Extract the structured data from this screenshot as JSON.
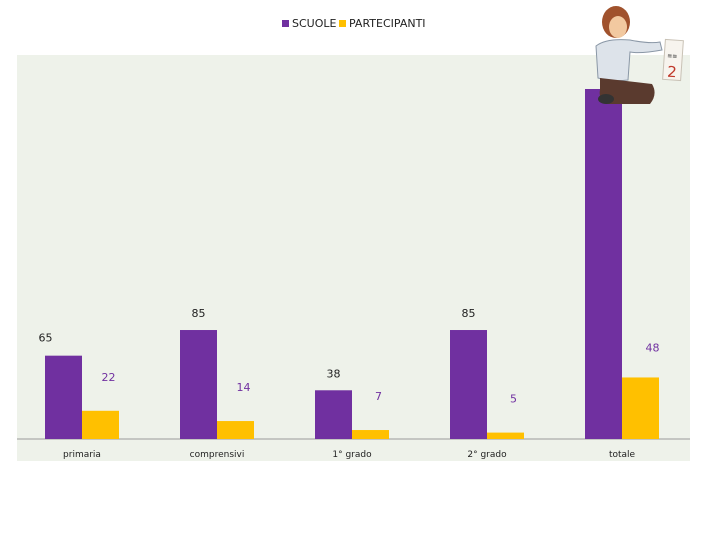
{
  "colors": {
    "background_panel": "#eef2ea",
    "label_dark": "#222222",
    "label_purple": "#7030a0"
  },
  "chart_data": {
    "type": "bar",
    "title": "",
    "xlabel": "",
    "ylabel": "",
    "categories": [
      "primaria",
      "comprensivi",
      "1° grado",
      "2° grado",
      "totale"
    ],
    "series": [
      {
        "name": "SCUOLE",
        "color": "#7030a0",
        "values": [
          65,
          85,
          38,
          85,
          273
        ],
        "labels": [
          "65",
          "85",
          "38",
          "85",
          ""
        ],
        "label_color": "#222222"
      },
      {
        "name": "PARTECIPANTI",
        "color": "#ffc000",
        "values": [
          22,
          14,
          7,
          5,
          48
        ],
        "labels": [
          "22",
          "14",
          "7",
          "5",
          "48"
        ],
        "label_color": "#7030a0"
      }
    ],
    "grid": false,
    "legend_position": "top"
  },
  "decoration": {
    "icon": "person-holding-sign-illustration",
    "sign_text": "2"
  }
}
